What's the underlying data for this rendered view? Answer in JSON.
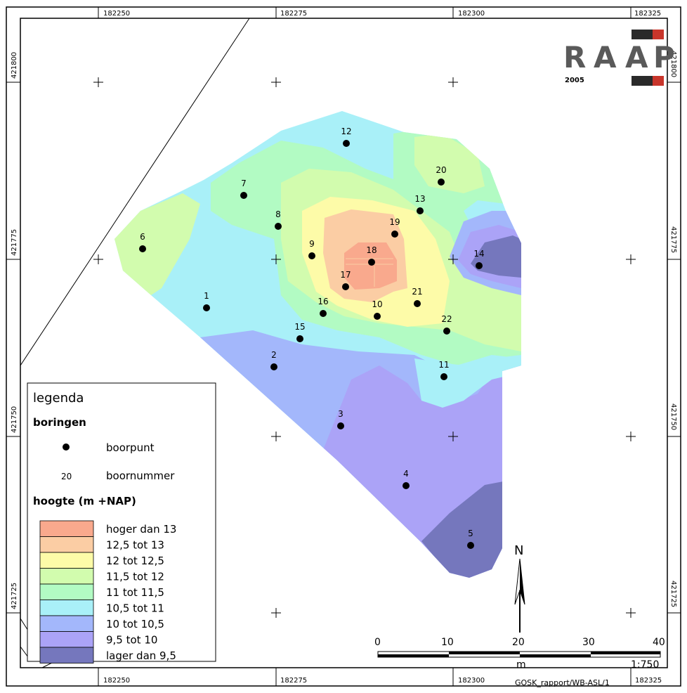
{
  "logo": {
    "letters": [
      "R",
      "A",
      "A",
      "P"
    ],
    "year": "2005"
  },
  "coords": {
    "x_labels": [
      "182250",
      "182275",
      "182300",
      "182325"
    ],
    "y_labels": [
      "421800",
      "421775",
      "421750",
      "421725"
    ]
  },
  "boreholes": [
    {
      "id": "1"
    },
    {
      "id": "2"
    },
    {
      "id": "3"
    },
    {
      "id": "4"
    },
    {
      "id": "5"
    },
    {
      "id": "6"
    },
    {
      "id": "7"
    },
    {
      "id": "8"
    },
    {
      "id": "9"
    },
    {
      "id": "10"
    },
    {
      "id": "11"
    },
    {
      "id": "12"
    },
    {
      "id": "13"
    },
    {
      "id": "14"
    },
    {
      "id": "15"
    },
    {
      "id": "16"
    },
    {
      "id": "17"
    },
    {
      "id": "18"
    },
    {
      "id": "19"
    },
    {
      "id": "20"
    },
    {
      "id": "21"
    },
    {
      "id": "22"
    }
  ],
  "legend": {
    "title": "legenda",
    "section_borings": "boringen",
    "point_label": "boorpunt",
    "number_sample": "20",
    "number_label": "boornummer",
    "section_height": "hoogte (m +NAP)",
    "classes": [
      {
        "label": "hoger dan 13",
        "color": "#f9a98d"
      },
      {
        "label": "12,5 tot 13",
        "color": "#fbcda4"
      },
      {
        "label": "12 tot 12,5",
        "color": "#fdfba8"
      },
      {
        "label": "11,5 tot 12",
        "color": "#d2fcae"
      },
      {
        "label": "11 tot 11,5",
        "color": "#b2fbc3"
      },
      {
        "label": "10,5 tot 11",
        "color": "#a9f0f8"
      },
      {
        "label": "10 tot 10,5",
        "color": "#a3b7fb"
      },
      {
        "label": "9,5 tot 10",
        "color": "#aba3f7"
      },
      {
        "label": "lager dan 9,5",
        "color": "#7577bd"
      }
    ]
  },
  "north": "N",
  "scale": {
    "ticks": [
      "0",
      "10",
      "20",
      "30",
      "40"
    ],
    "unit": "m",
    "ratio": "1:750"
  },
  "footer": "GOSK_rapport/WB-ASL/1"
}
